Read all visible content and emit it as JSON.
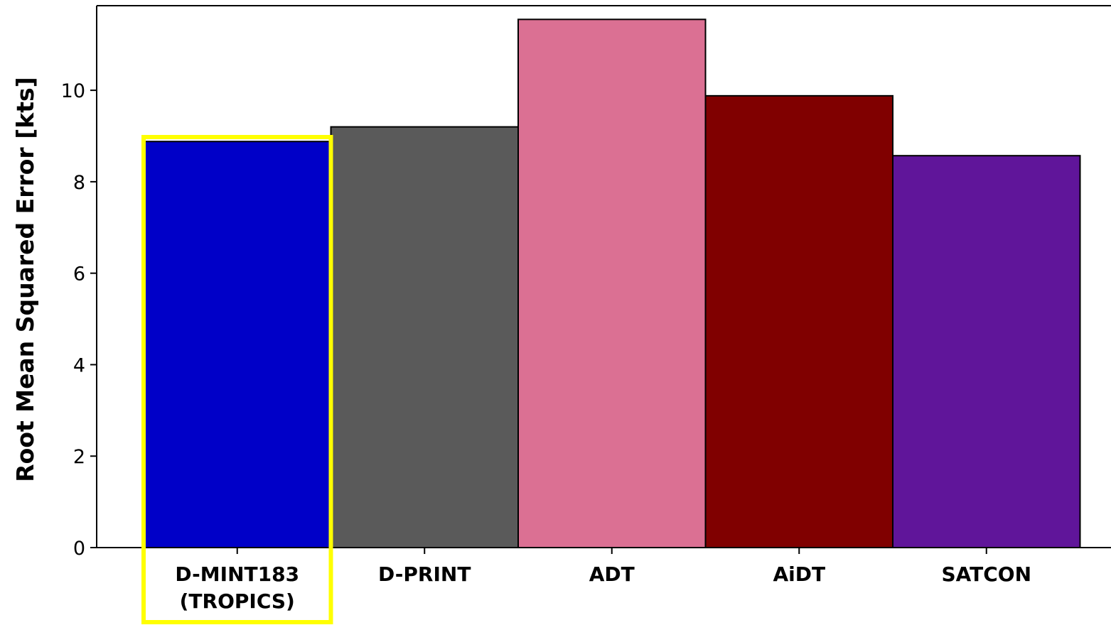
{
  "chart_data": {
    "type": "bar",
    "categories": [
      [
        "D-MINT183",
        "(TROPICS)"
      ],
      [
        "D-PRINT"
      ],
      [
        "ADT"
      ],
      [
        "AiDT"
      ],
      [
        "SATCON"
      ]
    ],
    "values": [
      8.88,
      9.2,
      11.55,
      9.88,
      8.57
    ],
    "colors": [
      "#0000c8",
      "#5a5a5a",
      "#db7093",
      "#800000",
      "#60159a"
    ],
    "highlighted_index": 0,
    "highlight_color": "#ffff00",
    "ylabel": "Root Mean Squared Error [kts]",
    "xlabel": "",
    "title": "",
    "ylim": [
      0,
      11.85
    ],
    "yticks": [
      0,
      2,
      4,
      6,
      8,
      10
    ],
    "grid": false,
    "legend": false
  }
}
